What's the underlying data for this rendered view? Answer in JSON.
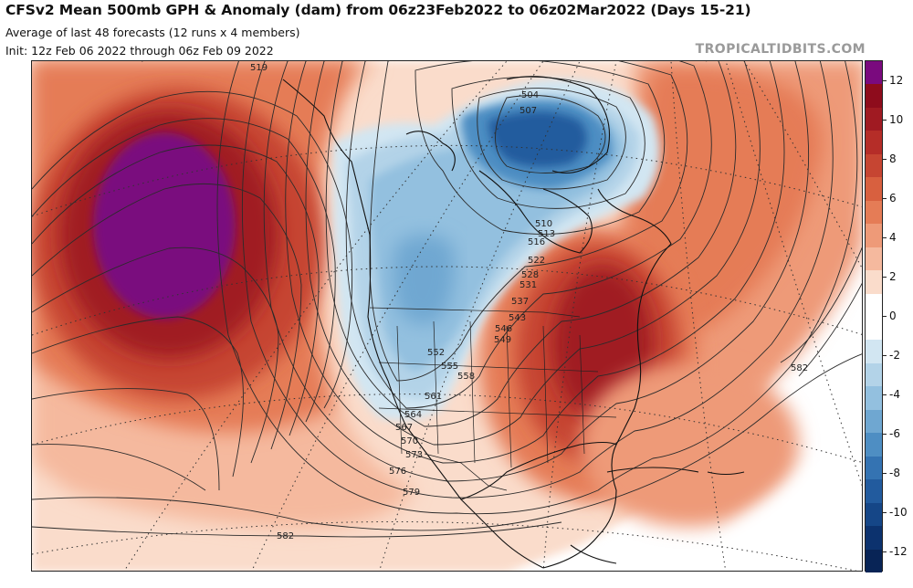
{
  "header": {
    "title": "CFSv2 Mean 500mb GPH & Anomaly (dam) from 06z23Feb2022 to 06z02Mar2022 (Days 15-21)",
    "subtitle1": "Average of last 48 forecasts (12 runs x 4 members)",
    "subtitle2": "Init: 12z Feb 06 2022 through 06z Feb 09 2022",
    "credit": "TROPICALTIDBITS.COM"
  },
  "map": {
    "region": "North America",
    "field": "500mb geopotential height anomaly",
    "contour_labels": [
      "504",
      "507",
      "510",
      "513",
      "516",
      "519",
      "522",
      "528",
      "531",
      "537",
      "543",
      "546",
      "549",
      "552",
      "555",
      "558",
      "561",
      "564",
      "567",
      "570",
      "573",
      "576",
      "579",
      "582",
      "582"
    ]
  },
  "colorbar": {
    "ticks": [
      "12",
      "10",
      "8",
      "6",
      "4",
      "2",
      "0",
      "-2",
      "-4",
      "-6",
      "-8",
      "-10",
      "-12"
    ],
    "colors": [
      "#7a0a7e",
      "#8e0c1c",
      "#a01a22",
      "#b52d28",
      "#c64532",
      "#d8603f",
      "#e57c56",
      "#ee9a78",
      "#f5b99e",
      "#fadccb",
      "#ffffff",
      "#ffffff",
      "#d2e6f2",
      "#b3d3e8",
      "#93c0df",
      "#6fa7d1",
      "#4e8ec3",
      "#3473b2",
      "#225b9e",
      "#154687",
      "#0c326e",
      "#082456"
    ]
  }
}
